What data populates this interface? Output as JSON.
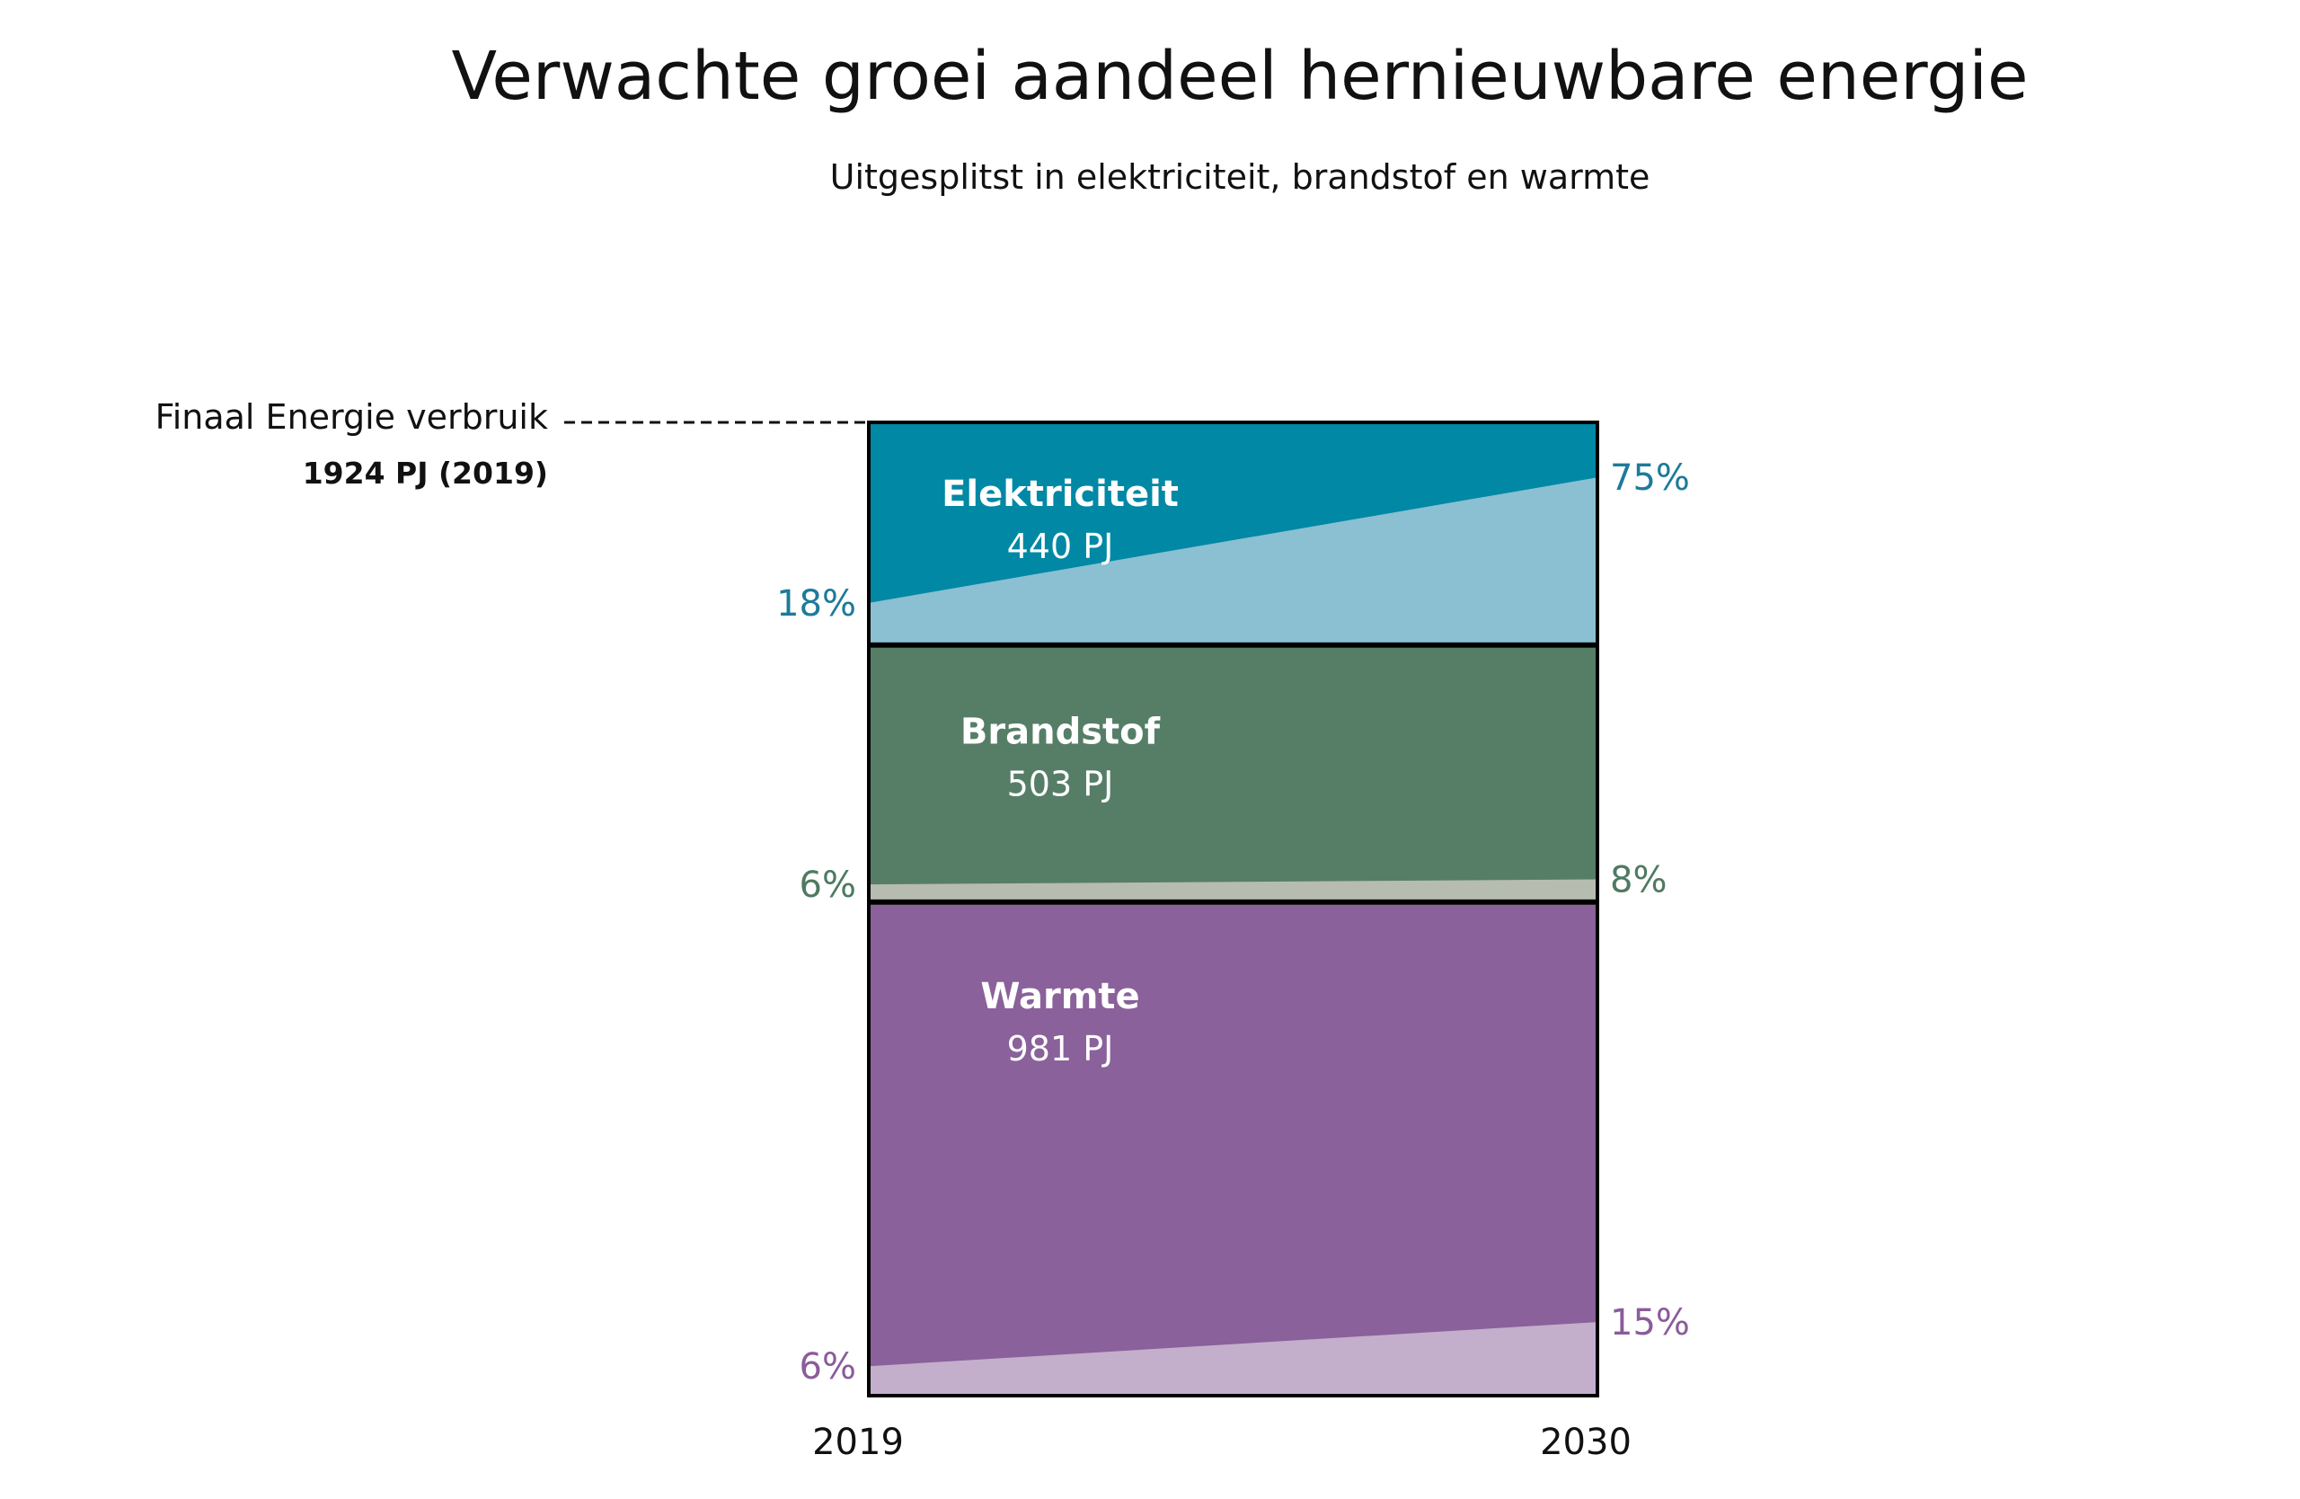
{
  "chart_data": {
    "type": "area",
    "title": "Verwachte groei aandeel hernieuwbare energie",
    "subtitle": "Uitgesplitst in elektriciteit, brandstof en warmte",
    "total": {
      "label": "Finaal Energie verbruik",
      "value_label": "1924 PJ (2019)",
      "value": 1924,
      "unit": "PJ"
    },
    "x": [
      "2019",
      "2030"
    ],
    "segments": [
      {
        "name": "Elektriciteit",
        "value": 440,
        "value_label": "440 PJ",
        "renewable_share": [
          18,
          75
        ],
        "share_labels": [
          "18%",
          "75%"
        ],
        "color": "#0088a5",
        "renewable_color": "#8bbfd2",
        "label_color": "#1d7a9a"
      },
      {
        "name": "Brandstof",
        "value": 503,
        "value_label": "503 PJ",
        "renewable_share": [
          6,
          8
        ],
        "share_labels": [
          "6%",
          "8%"
        ],
        "color": "#567e67",
        "renewable_color": "#b6bcaf",
        "label_color": "#4e7a62"
      },
      {
        "name": "Warmte",
        "value": 981,
        "value_label": "981 PJ",
        "renewable_share": [
          6,
          15
        ],
        "share_labels": [
          "6%",
          "15%"
        ],
        "color": "#8a619a",
        "renewable_color": "#c3aecc",
        "label_color": "#8a5c9a"
      }
    ]
  }
}
